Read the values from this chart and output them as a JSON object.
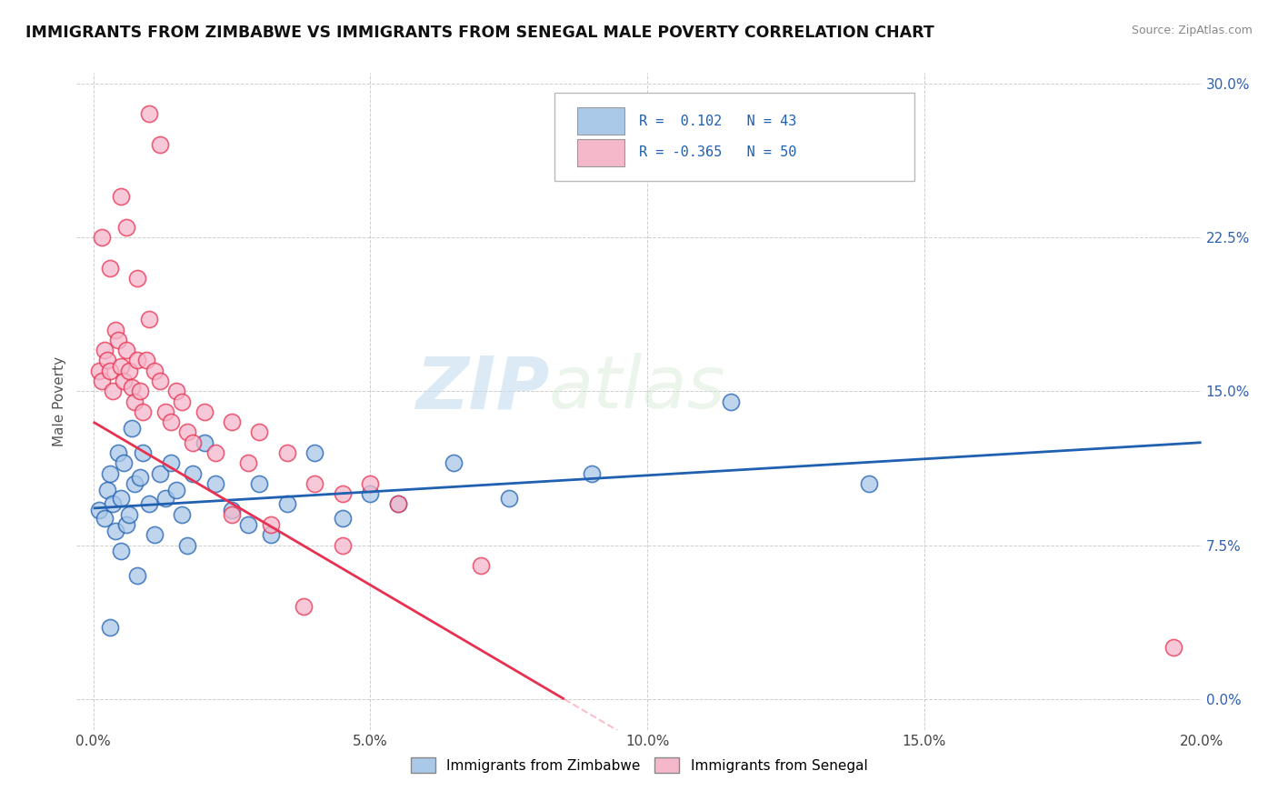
{
  "title": "IMMIGRANTS FROM ZIMBABWE VS IMMIGRANTS FROM SENEGAL MALE POVERTY CORRELATION CHART",
  "source": "Source: ZipAtlas.com",
  "xlabel_ticks": [
    "0.0%",
    "5.0%",
    "10.0%",
    "15.0%",
    "20.0%"
  ],
  "xlabel_tick_vals": [
    0.0,
    5.0,
    10.0,
    15.0,
    20.0
  ],
  "ylabel_ticks": [
    "0.0%",
    "7.5%",
    "15.0%",
    "22.5%",
    "30.0%"
  ],
  "ylabel_tick_vals": [
    0.0,
    7.5,
    15.0,
    22.5,
    30.0
  ],
  "xlim": [
    -0.3,
    20.0
  ],
  "ylim": [
    -1.5,
    30.5
  ],
  "watermark_zip": "ZIP",
  "watermark_atlas": "atlas",
  "zimbabwe_color": "#aac8e8",
  "senegal_color": "#f5b8cb",
  "zimbabwe_line_color": "#2060b0",
  "senegal_line_color": "#e83050",
  "zimbabwe_scatter": [
    [
      0.1,
      9.2
    ],
    [
      0.2,
      8.8
    ],
    [
      0.25,
      10.2
    ],
    [
      0.3,
      11.0
    ],
    [
      0.35,
      9.5
    ],
    [
      0.4,
      8.2
    ],
    [
      0.45,
      12.0
    ],
    [
      0.5,
      9.8
    ],
    [
      0.5,
      7.2
    ],
    [
      0.55,
      11.5
    ],
    [
      0.6,
      8.5
    ],
    [
      0.65,
      9.0
    ],
    [
      0.7,
      13.2
    ],
    [
      0.75,
      10.5
    ],
    [
      0.8,
      6.0
    ],
    [
      0.85,
      10.8
    ],
    [
      0.9,
      12.0
    ],
    [
      1.0,
      9.5
    ],
    [
      1.1,
      8.0
    ],
    [
      1.2,
      11.0
    ],
    [
      1.3,
      9.8
    ],
    [
      1.4,
      11.5
    ],
    [
      1.5,
      10.2
    ],
    [
      1.6,
      9.0
    ],
    [
      1.7,
      7.5
    ],
    [
      1.8,
      11.0
    ],
    [
      2.0,
      12.5
    ],
    [
      2.2,
      10.5
    ],
    [
      2.5,
      9.2
    ],
    [
      2.8,
      8.5
    ],
    [
      3.0,
      10.5
    ],
    [
      3.2,
      8.0
    ],
    [
      3.5,
      9.5
    ],
    [
      4.0,
      12.0
    ],
    [
      4.5,
      8.8
    ],
    [
      5.0,
      10.0
    ],
    [
      5.5,
      9.5
    ],
    [
      6.5,
      11.5
    ],
    [
      7.5,
      9.8
    ],
    [
      9.0,
      11.0
    ],
    [
      11.5,
      14.5
    ],
    [
      14.0,
      10.5
    ],
    [
      0.3,
      3.5
    ]
  ],
  "senegal_scatter": [
    [
      0.1,
      16.0
    ],
    [
      0.15,
      15.5
    ],
    [
      0.2,
      17.0
    ],
    [
      0.25,
      16.5
    ],
    [
      0.3,
      16.0
    ],
    [
      0.35,
      15.0
    ],
    [
      0.4,
      18.0
    ],
    [
      0.45,
      17.5
    ],
    [
      0.5,
      16.2
    ],
    [
      0.55,
      15.5
    ],
    [
      0.6,
      17.0
    ],
    [
      0.65,
      16.0
    ],
    [
      0.7,
      15.2
    ],
    [
      0.75,
      14.5
    ],
    [
      0.8,
      16.5
    ],
    [
      0.85,
      15.0
    ],
    [
      0.9,
      14.0
    ],
    [
      0.95,
      16.5
    ],
    [
      1.0,
      18.5
    ],
    [
      1.1,
      16.0
    ],
    [
      1.2,
      15.5
    ],
    [
      1.3,
      14.0
    ],
    [
      1.4,
      13.5
    ],
    [
      1.5,
      15.0
    ],
    [
      1.6,
      14.5
    ],
    [
      1.7,
      13.0
    ],
    [
      1.8,
      12.5
    ],
    [
      2.0,
      14.0
    ],
    [
      2.2,
      12.0
    ],
    [
      2.5,
      13.5
    ],
    [
      2.8,
      11.5
    ],
    [
      3.0,
      13.0
    ],
    [
      3.5,
      12.0
    ],
    [
      4.0,
      10.5
    ],
    [
      4.5,
      10.0
    ],
    [
      5.0,
      10.5
    ],
    [
      5.5,
      9.5
    ],
    [
      0.5,
      24.5
    ],
    [
      0.6,
      23.0
    ],
    [
      0.8,
      20.5
    ],
    [
      1.0,
      28.5
    ],
    [
      1.2,
      27.0
    ],
    [
      0.15,
      22.5
    ],
    [
      0.3,
      21.0
    ],
    [
      2.5,
      9.0
    ],
    [
      3.2,
      8.5
    ],
    [
      4.5,
      7.5
    ],
    [
      7.0,
      6.5
    ],
    [
      3.8,
      4.5
    ],
    [
      19.5,
      2.5
    ]
  ]
}
